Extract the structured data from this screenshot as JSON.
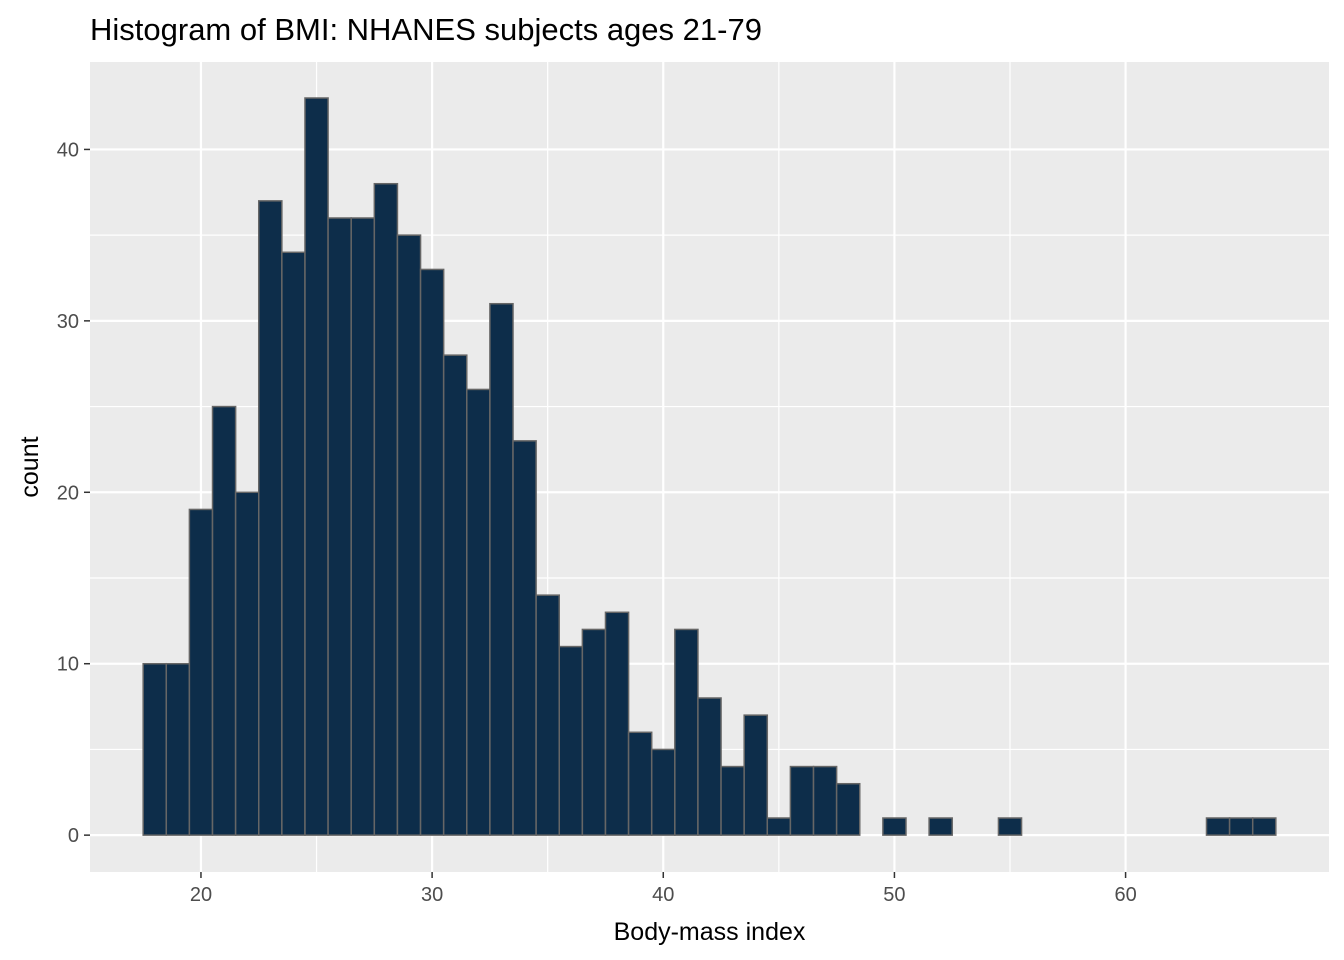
{
  "chart_data": {
    "type": "bar",
    "subtype": "histogram",
    "title": "Histogram of BMI: NHANES subjects ages 21-79",
    "xlabel": "Body-mass index",
    "ylabel": "count",
    "xlim": [
      15.2,
      68.8
    ],
    "ylim": [
      -2.15,
      45.1
    ],
    "x_ticks": [
      20,
      30,
      40,
      50,
      60
    ],
    "y_ticks": [
      0,
      10,
      20,
      30,
      40
    ],
    "x_tick_labels": [
      "20",
      "30",
      "40",
      "50",
      "60"
    ],
    "y_tick_labels": [
      "0",
      "10",
      "20",
      "30",
      "40"
    ],
    "bin_width": 1,
    "bins_start": [
      17.5,
      18.5,
      19.5,
      20.5,
      21.5,
      22.5,
      23.5,
      24.5,
      25.5,
      26.5,
      27.5,
      28.5,
      29.5,
      30.5,
      31.5,
      32.5,
      33.5,
      34.5,
      35.5,
      36.5,
      37.5,
      38.5,
      39.5,
      40.5,
      41.5,
      42.5,
      43.5,
      44.5,
      45.5,
      46.5,
      47.5,
      48.5,
      49.5,
      50.5,
      51.5,
      52.5,
      53.5,
      54.5,
      55.5,
      56.5,
      57.5,
      58.5,
      59.5,
      60.5,
      61.5,
      62.5,
      63.5,
      64.5,
      65.5
    ],
    "values": [
      10,
      10,
      19,
      25,
      20,
      37,
      34,
      43,
      36,
      36,
      38,
      35,
      33,
      28,
      26,
      31,
      23,
      14,
      11,
      12,
      13,
      6,
      5,
      12,
      8,
      4,
      7,
      1,
      4,
      4,
      3,
      0,
      1,
      0,
      1,
      0,
      0,
      1,
      0,
      0,
      0,
      0,
      0,
      0,
      0,
      0,
      1,
      1,
      1
    ],
    "grid": true,
    "legend": "none",
    "colors": {
      "bar_fill": "#0d2d4a",
      "bar_edge": "#666666",
      "panel_background": "#ebebeb",
      "grid_line": "#ffffff"
    }
  }
}
